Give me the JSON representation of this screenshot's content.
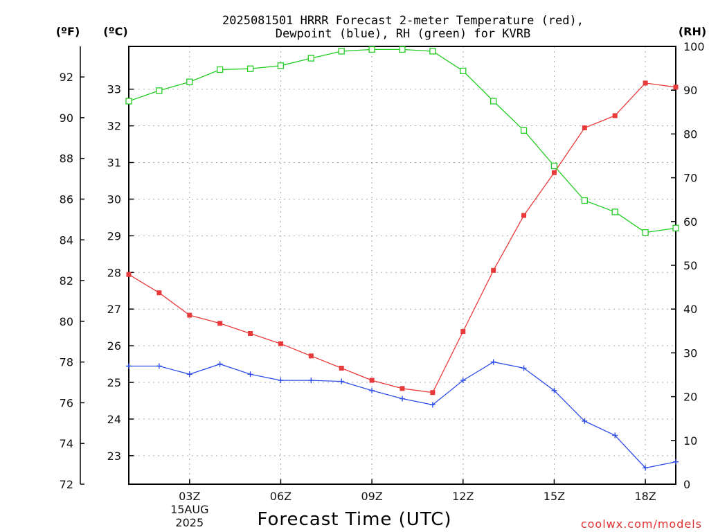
{
  "chart_data": {
    "type": "line",
    "title_lines": [
      "2025081501 HRRR Forecast 2-meter Temperature (red),",
      "Dewpoint (blue), RH (green) for KVRB"
    ],
    "xlabel": "Forecast Time (UTC)",
    "credit": "coolwx.com/models",
    "left_unit_f": "(ºF)",
    "left_unit_c": "(ºC)",
    "right_unit": "(RH)",
    "x_hours": [
      1,
      2,
      3,
      4,
      5,
      6,
      7,
      8,
      9,
      10,
      11,
      12,
      13,
      14,
      15,
      16,
      17,
      18,
      19
    ],
    "x_ticks": [
      {
        "hour": 3,
        "lines": [
          "03Z",
          "15AUG",
          "2025"
        ]
      },
      {
        "hour": 6,
        "lines": [
          "06Z"
        ]
      },
      {
        "hour": 9,
        "lines": [
          "09Z"
        ]
      },
      {
        "hour": 12,
        "lines": [
          "12Z"
        ]
      },
      {
        "hour": 15,
        "lines": [
          "15Z"
        ]
      },
      {
        "hour": 18,
        "lines": [
          "18Z"
        ]
      }
    ],
    "x_range": [
      1,
      19
    ],
    "y_f_range": [
      72,
      93.5
    ],
    "y_f_ticks": [
      72,
      74,
      76,
      78,
      80,
      82,
      84,
      86,
      88,
      90,
      92
    ],
    "y_c_ticks": [
      23,
      24,
      25,
      26,
      27,
      28,
      29,
      30,
      31,
      32,
      33
    ],
    "y_rh_range": [
      0,
      100
    ],
    "y_rh_ticks": [
      0,
      10,
      20,
      30,
      40,
      50,
      60,
      70,
      80,
      90,
      100
    ],
    "grid": true,
    "series": [
      {
        "name": "Temperature",
        "axis": "F",
        "color": "#e83a3a",
        "marker": "filled-square",
        "values": [
          82.3,
          81.4,
          80.3,
          79.9,
          79.4,
          78.9,
          78.3,
          77.7,
          77.1,
          76.7,
          76.5,
          79.5,
          82.5,
          85.2,
          87.3,
          89.5,
          90.1,
          91.7,
          91.5
        ]
      },
      {
        "name": "Dewpoint",
        "axis": "F",
        "color": "#2f4ee8",
        "marker": "plus",
        "values": [
          77.8,
          77.8,
          77.4,
          77.9,
          77.4,
          77.1,
          77.1,
          77.05,
          76.6,
          76.2,
          75.9,
          77.1,
          78.0,
          77.7,
          76.6,
          75.1,
          74.4,
          72.8,
          73.1
        ]
      },
      {
        "name": "RH",
        "axis": "RH",
        "color": "#22cc22",
        "marker": "open-square",
        "values": [
          87.5,
          89.9,
          91.9,
          94.7,
          94.9,
          95.6,
          97.3,
          98.9,
          99.3,
          99.3,
          98.9,
          94.4,
          87.5,
          80.8,
          72.7,
          64.8,
          62.2,
          57.5,
          58.5
        ]
      }
    ]
  }
}
